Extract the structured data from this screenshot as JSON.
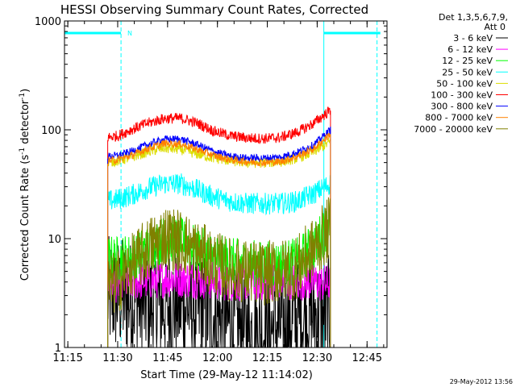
{
  "chart_data": {
    "type": "line",
    "title": "HESSI Observing Summary Count Rates, Corrected",
    "xlabel": "Start Time (29-May-12 11:14:02)",
    "ylabel_main": "Corrected Count Rate (s",
    "ylabel_sup1": "-1",
    "ylabel_mid": " detector",
    "ylabel_sup2": "-1",
    "ylabel_end": ")",
    "x_unit": "minutes since 11:14:02",
    "xlim": [
      0,
      97
    ],
    "ylim": [
      1,
      1000
    ],
    "y_scale": "log",
    "x_ticks": [
      {
        "value": 1,
        "label": "11:15"
      },
      {
        "value": 16,
        "label": "11:30"
      },
      {
        "value": 31,
        "label": "11:45"
      },
      {
        "value": 46,
        "label": "12:00"
      },
      {
        "value": 61,
        "label": "12:15"
      },
      {
        "value": 76,
        "label": "12:30"
      },
      {
        "value": 91,
        "label": "12:45"
      }
    ],
    "y_ticks": [
      {
        "value": 1,
        "label": "1"
      },
      {
        "value": 10,
        "label": "10"
      },
      {
        "value": 100,
        "label": "100"
      },
      {
        "value": 1000,
        "label": "1000"
      }
    ],
    "legend_header": [
      "Det 1,3,5,6,7,9,",
      "Att 0"
    ],
    "legend_position": "right",
    "annotation_n": "N",
    "data_interval": [
      13,
      80
    ],
    "night_bars": [
      [
        0,
        17
      ],
      [
        78,
        95
      ]
    ],
    "vlines": [
      {
        "x": 17,
        "style": "dashed",
        "color": "#00ffff"
      },
      {
        "x": 78,
        "style": "solid",
        "color": "#00ffff"
      },
      {
        "x": 94,
        "style": "dashed",
        "color": "#00ffff"
      }
    ],
    "series": [
      {
        "name": "3 - 6 keV",
        "color": "#000000",
        "x": [
          13,
          16,
          20,
          25,
          30,
          35,
          40,
          45,
          50,
          55,
          60,
          65,
          70,
          75,
          80
        ],
        "values": [
          3.0,
          3.0,
          2.8,
          2.5,
          2.5,
          2.5,
          2.2,
          2.0,
          1.6,
          1.4,
          1.4,
          1.6,
          1.8,
          2.0,
          2.0
        ]
      },
      {
        "name": "6 - 12 keV",
        "color": "#ff00ff",
        "x": [
          13,
          16,
          20,
          25,
          30,
          35,
          40,
          45,
          50,
          55,
          60,
          65,
          70,
          75,
          80
        ],
        "values": [
          3.7,
          3.9,
          4.0,
          4.1,
          4.3,
          4.3,
          4.2,
          4.1,
          4.0,
          4.0,
          4.0,
          4.1,
          4.1,
          4.0,
          3.8
        ]
      },
      {
        "name": "12 - 25 keV",
        "color": "#00ff00",
        "x": [
          13,
          16,
          20,
          25,
          30,
          35,
          40,
          45,
          50,
          55,
          60,
          65,
          70,
          75,
          80
        ],
        "values": [
          6.5,
          6.5,
          6.8,
          8.0,
          10.0,
          9.5,
          8.0,
          6.8,
          6.2,
          6.0,
          5.8,
          5.8,
          6.2,
          8.5,
          14.0
        ]
      },
      {
        "name": "25 - 50 keV",
        "color": "#00ffff",
        "x": [
          13,
          16,
          20,
          25,
          30,
          35,
          40,
          45,
          50,
          55,
          60,
          65,
          70,
          75,
          80
        ],
        "values": [
          22,
          23,
          25,
          29,
          32,
          32,
          28,
          24,
          22,
          21,
          21,
          21,
          22,
          26,
          32
        ]
      },
      {
        "name": "50 - 100 keV",
        "color": "#dddd00",
        "x": [
          13,
          16,
          20,
          25,
          30,
          35,
          40,
          45,
          50,
          55,
          60,
          65,
          70,
          75,
          80
        ],
        "values": [
          51,
          52,
          56,
          63,
          68,
          66,
          60,
          55,
          52,
          50,
          50,
          51,
          55,
          63,
          78
        ]
      },
      {
        "name": "100 - 300 keV",
        "color": "#ff0000",
        "x": [
          13,
          16,
          20,
          25,
          30,
          35,
          40,
          45,
          50,
          55,
          60,
          65,
          70,
          75,
          80
        ],
        "values": [
          85,
          88,
          100,
          115,
          127,
          128,
          115,
          97,
          88,
          84,
          83,
          85,
          95,
          115,
          152
        ]
      },
      {
        "name": "300 - 800 keV",
        "color": "#0000ff",
        "x": [
          13,
          16,
          20,
          25,
          30,
          35,
          40,
          45,
          50,
          55,
          60,
          65,
          70,
          75,
          80
        ],
        "values": [
          57,
          58,
          63,
          73,
          82,
          82,
          73,
          63,
          57,
          55,
          55,
          56,
          62,
          73,
          100
        ]
      },
      {
        "name": "800 - 7000 keV",
        "color": "#ff8000",
        "x": [
          13,
          16,
          20,
          25,
          30,
          35,
          40,
          45,
          50,
          55,
          60,
          65,
          70,
          75,
          80
        ],
        "values": [
          52,
          53,
          58,
          67,
          75,
          74,
          66,
          58,
          53,
          51,
          50,
          51,
          57,
          67,
          92
        ]
      },
      {
        "name": "7000 - 20000 keV",
        "color": "#808000",
        "x": [
          13,
          16,
          20,
          25,
          30,
          35,
          40,
          45,
          50,
          55,
          60,
          65,
          70,
          75,
          80
        ],
        "values": [
          3.6,
          4.0,
          5.5,
          8.0,
          10.5,
          9.5,
          7.5,
          6.0,
          5.2,
          5.0,
          4.8,
          5.0,
          5.5,
          8.0,
          13.0
        ]
      }
    ]
  },
  "footer_date": "29-May-2012 13:56"
}
